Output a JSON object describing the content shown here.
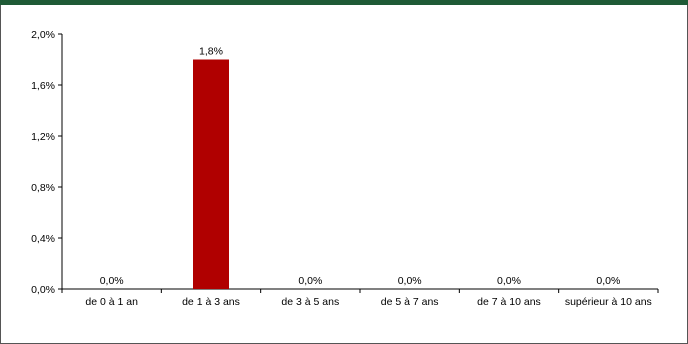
{
  "colors": {
    "header_bar": "#1f5a36",
    "bar": "#b00000",
    "axis": "#000000"
  },
  "chart_data": {
    "type": "bar",
    "title": "",
    "xlabel": "",
    "ylabel": "",
    "categories": [
      "de 0 à 1 an",
      "de 1 à 3 ans",
      "de 3 à 5 ans",
      "de 5 à 7 ans",
      "de 7 à 10 ans",
      "supérieur à 10 ans"
    ],
    "values": [
      0.0,
      1.8,
      0.0,
      0.0,
      0.0,
      0.0
    ],
    "data_labels": [
      "0,0%",
      "1,8%",
      "0,0%",
      "0,0%",
      "0,0%",
      "0,0%"
    ],
    "ylim": [
      0,
      2.0
    ],
    "yticks": [
      0,
      0.4,
      0.8,
      1.2,
      1.6,
      2.0
    ],
    "ytick_labels": [
      "0,0%",
      "0,4%",
      "0,8%",
      "1,2%",
      "1,6%",
      "2,0%"
    ],
    "grid": false,
    "legend": "none"
  }
}
